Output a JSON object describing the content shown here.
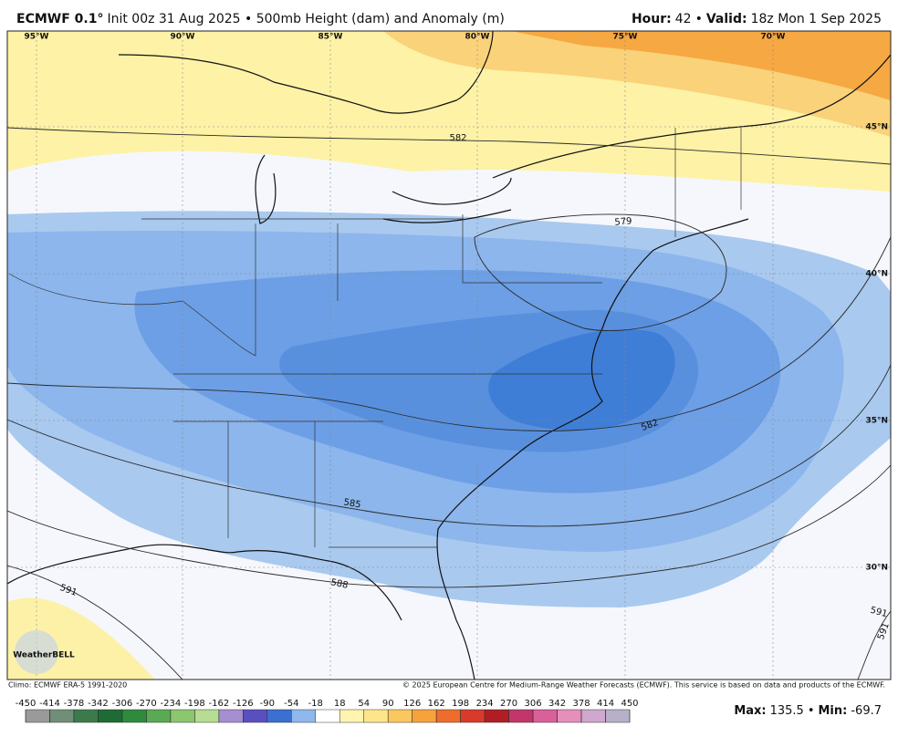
{
  "header": {
    "model": "ECMWF 0.1°",
    "description": "Init 00z 31 Aug 2025 • 500mb Height (dam) and Anomaly (m)",
    "hour_label": "Hour:",
    "hour": 42,
    "separator": "•",
    "valid_label": "Valid:",
    "valid": "18z Mon 1 Sep 2025"
  },
  "map": {
    "longitude_labels": [
      "95°W",
      "90°W",
      "85°W",
      "80°W",
      "75°W",
      "70°W"
    ],
    "latitude_labels": [
      "45°N",
      "40°N",
      "35°N",
      "30°N"
    ],
    "contour_labels": [
      582,
      579,
      582,
      585,
      588,
      591,
      591,
      591
    ],
    "logo": "WeatherBELL"
  },
  "footer": {
    "climo": "Climo: ECMWF ERA-5 1991-2020",
    "copyright": "© 2025 European Centre for Medium-Range Weather Forecasts (ECMWF). This service is based on data and products of the ECMWF."
  },
  "colorbar": {
    "ticks": [
      -450,
      -414,
      -378,
      -342,
      -306,
      -270,
      -234,
      -198,
      -162,
      -126,
      -90,
      -54,
      -18,
      18,
      54,
      90,
      126,
      162,
      198,
      234,
      270,
      306,
      342,
      378,
      414,
      450
    ],
    "colors": [
      "#9a9a9a",
      "#6f8f78",
      "#3c7a4c",
      "#1f6b35",
      "#2e8b3e",
      "#5aaa55",
      "#8cc66f",
      "#b7dc93",
      "#a58fd0",
      "#5a4fc0",
      "#3b6fd0",
      "#8fb8ec",
      "#ffffff",
      "#fff5b0",
      "#fde68a",
      "#fbc85f",
      "#f7a33c",
      "#ef6c2c",
      "#d93a2a",
      "#b01e24",
      "#c2366b",
      "#d9609a",
      "#e58fbb",
      "#cfa7cf",
      "#b8b0c8"
    ]
  },
  "stats": {
    "max_label": "Max:",
    "max": 135.5,
    "separator": "•",
    "min_label": "Min:",
    "min": -69.7
  }
}
